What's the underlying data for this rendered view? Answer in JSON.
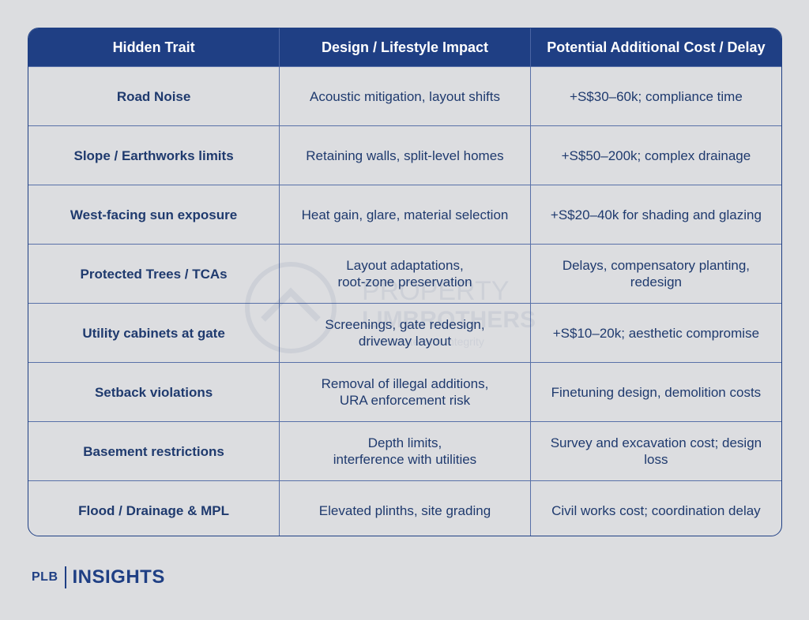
{
  "table": {
    "headers": [
      "Hidden Trait",
      "Design / Lifestyle Impact",
      "Potential Additional Cost / Delay"
    ],
    "rows": [
      {
        "trait": "Road Noise",
        "impact": [
          "Acoustic mitigation, layout shifts"
        ],
        "cost": "+S$30–60k; compliance time"
      },
      {
        "trait": "Slope / Earthworks limits",
        "impact": [
          "Retaining walls, split-level homes"
        ],
        "cost": "+S$50–200k; complex drainage"
      },
      {
        "trait": "West-facing sun exposure",
        "impact": [
          "Heat gain, glare, material selection"
        ],
        "cost": "+S$20–40k for shading and glazing"
      },
      {
        "trait": "Protected Trees / TCAs",
        "impact": [
          "Layout adaptations,",
          "root-zone preservation"
        ],
        "cost": "Delays, compensatory planting, redesign"
      },
      {
        "trait": "Utility cabinets at gate",
        "impact": [
          "Screenings, gate redesign,",
          "driveway layout"
        ],
        "cost": "+S$10–20k; aesthetic compromise"
      },
      {
        "trait": "Setback violations",
        "impact": [
          "Removal of illegal additions,",
          "URA enforcement risk"
        ],
        "cost": "Finetuning design, demolition costs"
      },
      {
        "trait": "Basement restrictions",
        "impact": [
          "Depth limits,",
          "interference with utilities"
        ],
        "cost": "Survey and excavation cost; design loss"
      },
      {
        "trait": "Flood / Drainage & MPL",
        "impact": [
          "Elevated plinths, site grading"
        ],
        "cost": "Civil works cost; coordination delay"
      }
    ]
  },
  "watermark": {
    "line1": "PROPERTY",
    "line2": "LIMBROTHERS",
    "tagline": "Real Estate with Integrity"
  },
  "footer": {
    "brand_short": "PLB",
    "brand_section": "INSIGHTS"
  },
  "colors": {
    "header_bg": "#1f3f84",
    "text": "#1f3a6e",
    "background": "#dcdde0"
  }
}
